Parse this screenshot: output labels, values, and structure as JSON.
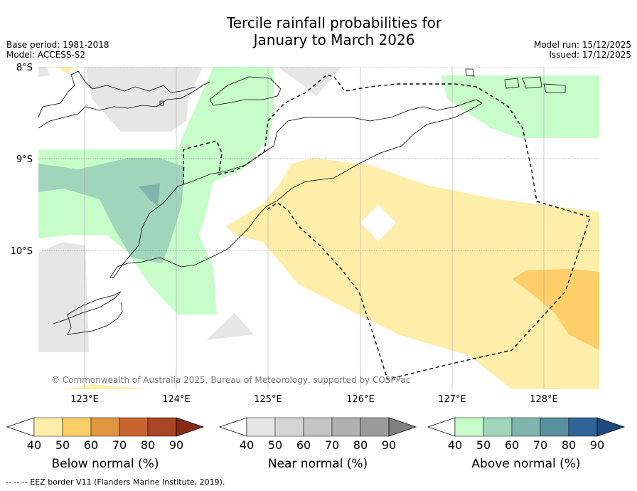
{
  "title": {
    "line1": "Tercile rainfall probabilities for",
    "line2": "January to March 2026"
  },
  "meta": {
    "base_period": "Base period: 1981-2018",
    "model": "Model: ACCESS-S2",
    "model_run": "Model run: 15/12/2025",
    "issued": "Issued: 17/12/2025"
  },
  "map": {
    "lat_labels": [
      "8°S",
      "9°S",
      "10°S"
    ],
    "lon_labels": [
      "123°E",
      "124°E",
      "125°E",
      "126°E",
      "127°E",
      "128°E"
    ],
    "copyright": "© Commonwealth of Australia 2025, Bureau of Meteorology, supported by COSPPac"
  },
  "legend": {
    "below": {
      "title": "Below normal (%)",
      "ticks": [
        "40",
        "50",
        "60",
        "70",
        "80",
        "90"
      ],
      "colors": [
        "#ffedaa",
        "#fece69",
        "#e0953f",
        "#c8642f",
        "#a84626",
        "#8a2a18"
      ]
    },
    "near": {
      "title": "Near normal (%)",
      "ticks": [
        "40",
        "50",
        "60",
        "70",
        "80",
        "90"
      ],
      "colors": [
        "#e6e6e6",
        "#d5d5d5",
        "#c4c4c4",
        "#b0b0b0",
        "#9b9b9b",
        "#808080"
      ]
    },
    "above": {
      "title": "Above normal (%)",
      "ticks": [
        "40",
        "50",
        "60",
        "70",
        "80",
        "90"
      ],
      "colors": [
        "#c7fdc9",
        "#a0d5bb",
        "#7fb5ac",
        "#5890a0",
        "#2f6496",
        "#1c4a80"
      ]
    }
  },
  "footnote": "--  --  -- EEZ border V11 (Flanders Marine Institute, 2019)."
}
